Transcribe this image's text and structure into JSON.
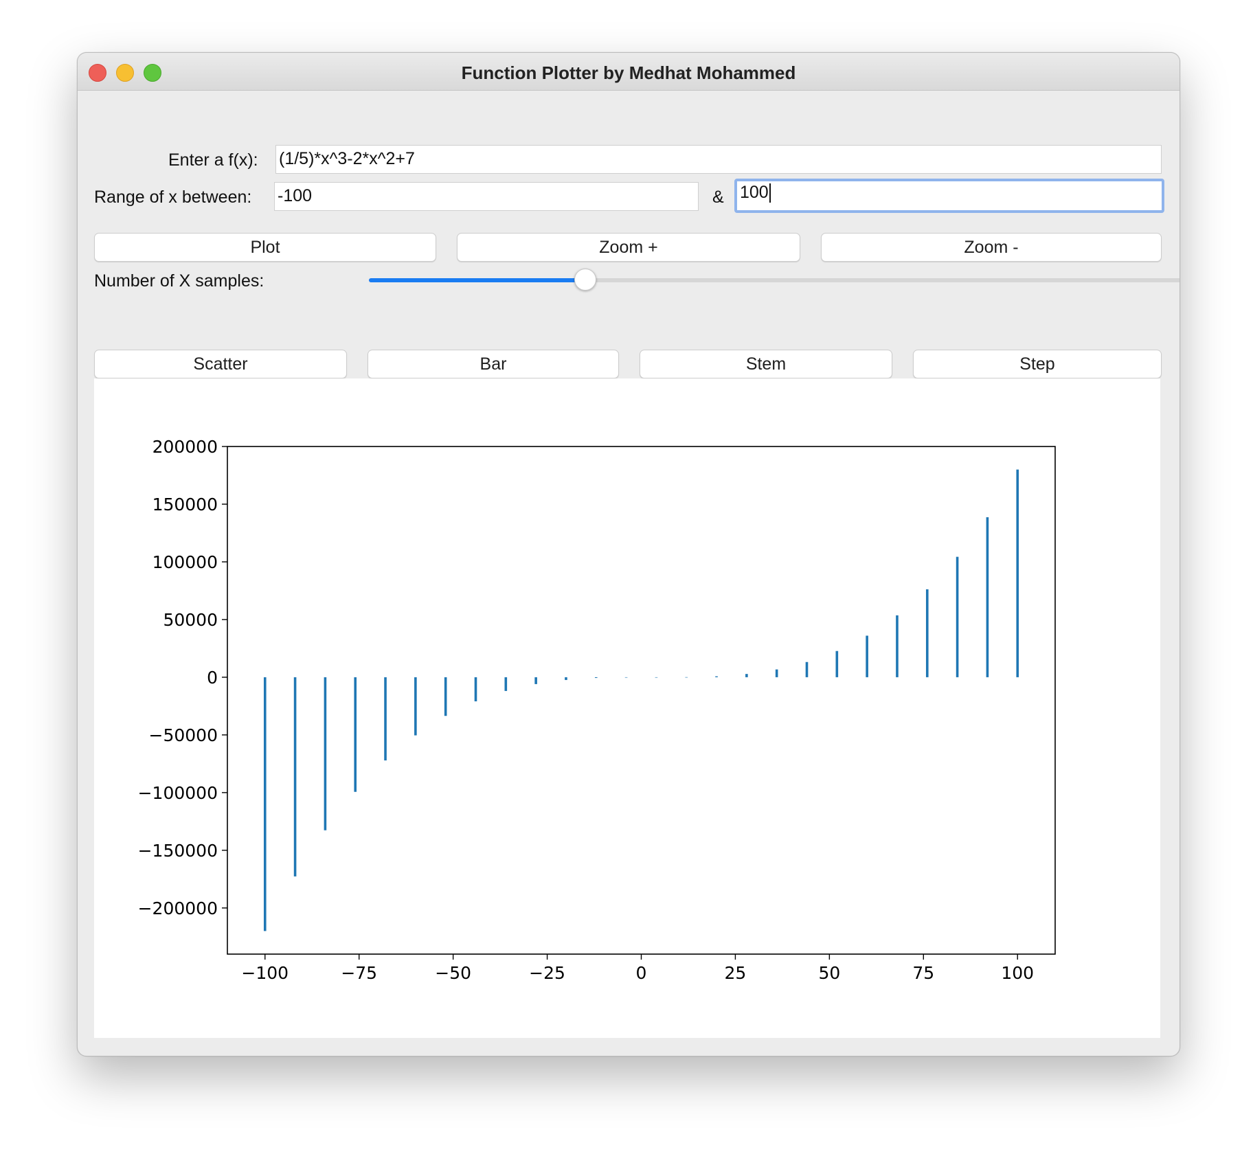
{
  "window": {
    "title": "Function Plotter by Medhat Mohammed"
  },
  "form": {
    "fx_label": "Enter a f(x):",
    "fx_value": "(1/5)*x^3-2*x^2+7",
    "range_label": "Range of x between:",
    "range_min": "-100",
    "range_separator": "&",
    "range_max": "100"
  },
  "buttons": {
    "plot": "Plot",
    "zoom_in": "Zoom +",
    "zoom_out": "Zoom -",
    "scatter": "Scatter",
    "bar": "Bar",
    "stem": "Stem",
    "step": "Step"
  },
  "slider": {
    "label": "Number of X samples:",
    "fraction": 0.25
  },
  "colors": {
    "bar": "#1f77b4",
    "slider_fill": "#1a7cf2",
    "focus_ring": "#8fb4ec"
  },
  "chart_data": {
    "type": "bar",
    "title": "",
    "xlabel": "",
    "ylabel": "",
    "xlim": [
      -110,
      110
    ],
    "ylim": [
      -240000,
      200000
    ],
    "xticks": [
      -100,
      -75,
      -50,
      -25,
      0,
      25,
      50,
      75,
      100
    ],
    "xtick_labels": [
      "−100",
      "−75",
      "−50",
      "−25",
      "0",
      "25",
      "50",
      "75",
      "100"
    ],
    "yticks": [
      200000,
      150000,
      100000,
      50000,
      0,
      -50000,
      -100000,
      -150000,
      -200000
    ],
    "ytick_labels": [
      "200000",
      "150000",
      "100000",
      "50000",
      "0",
      "−50000",
      "−100000",
      "−150000",
      "−200000"
    ],
    "x": [
      -100,
      -92,
      -84,
      -76,
      -68,
      -60,
      -52,
      -44,
      -36,
      -28,
      -20,
      -12,
      -4,
      4,
      12,
      20,
      28,
      36,
      44,
      52,
      60,
      68,
      76,
      84,
      92,
      100
    ],
    "values": [
      -219993,
      -172653,
      -132659,
      -99359,
      -72123,
      -50393,
      -33524,
      -20905,
      -11912,
      -5953,
      -2393,
      -625,
      -57,
      -12,
      65,
      807,
      2831,
      6750,
      13179,
      22723,
      36007,
      53639,
      76223,
      104367,
      138683,
      180007
    ]
  }
}
